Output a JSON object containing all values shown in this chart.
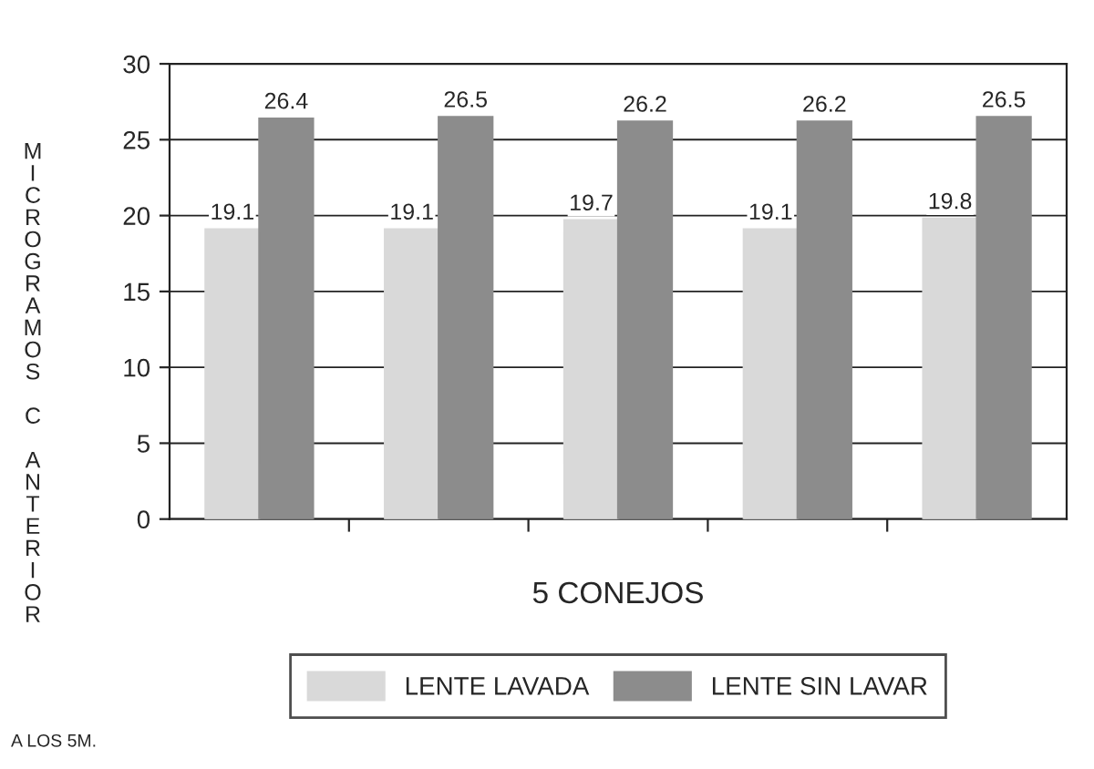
{
  "chart_data": {
    "type": "bar",
    "ylabel": "MICROGRAMOS C ANTERIOR",
    "xlabel": "5 CONEJOS",
    "categories": [
      null,
      null,
      null,
      null,
      null
    ],
    "series": [
      {
        "name": "LENTE LAVADA",
        "color": "#d9d9d9",
        "values": [
          19.1,
          19.1,
          19.7,
          19.1,
          19.8
        ]
      },
      {
        "name": "LENTE SIN LAVAR",
        "color": "#8c8c8c",
        "values": [
          26.4,
          26.5,
          26.2,
          26.2,
          26.5
        ]
      }
    ],
    "ylim": [
      0,
      30
    ],
    "yticks": [
      0,
      5,
      10,
      15,
      20,
      25,
      30
    ],
    "grid": "y",
    "legend": "bottom",
    "data_labels": true,
    "annotations": [
      "A LOS 5M."
    ]
  }
}
